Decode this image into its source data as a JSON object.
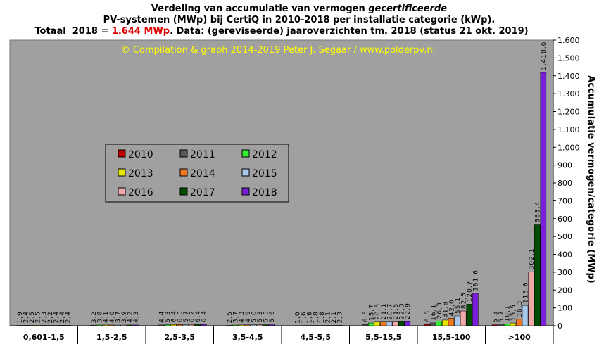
{
  "chart_data": {
    "type": "bar",
    "title": {
      "line1": "Verdeling van accumulatie van vermogen",
      "line1_italic": "gecertificeerde",
      "line2": "PV-systemen (MWp) bij CertiQ in 2010-2018 per installatie categorie (kWp).",
      "line3a": "Totaal  2018 = ",
      "line3_highlight": "1.644 MWp",
      "line3b": ". Data: (gereviseerde) jaaroverzichten tm. 2018 (status 21 okt. 2019)"
    },
    "watermark": "© Compilation  & graph 2014-2019 Peter J. Segaar / www.polderpv.nl",
    "y_label": "Accumulatie vermogen/categorie (MWp)",
    "categories": [
      "0,601-1,5",
      "1,5-2,5",
      "2,5-3,5",
      "3,5-4,5",
      "4,5-5,5",
      "5,5-15,5",
      "15,5-100",
      ">100"
    ],
    "ylim": [
      0,
      1600
    ],
    "yticks": [
      0,
      100,
      200,
      300,
      400,
      500,
      600,
      700,
      800,
      900,
      {
        "value": 1000,
        "label": "1.000"
      },
      {
        "value": 1100,
        "label": "1.100"
      },
      {
        "value": 1200,
        "label": "1.200"
      },
      {
        "value": 1300,
        "label": "1.300"
      },
      {
        "value": 1400,
        "label": "1.400"
      },
      {
        "value": 1500,
        "label": "1.500"
      },
      {
        "value": 1600,
        "label": "1.600"
      }
    ],
    "series": [
      {
        "name": "2010",
        "color": "#c00000",
        "values": [
          1.9,
          null,
          null,
          null,
          null,
          null,
          6.8,
          5.3
        ],
        "value_labels": [
          "1,9",
          null,
          null,
          null,
          null,
          null,
          "6,8",
          "5,3"
        ]
      },
      {
        "name": "2011",
        "color": "#595959",
        "values": [
          2.4,
          3.2,
          4.4,
          2.5,
          1.0,
          6.5,
          16.1,
          5.7
        ],
        "value_labels": [
          "2,4",
          "3,2",
          "4,4",
          "2,5",
          "1,0",
          "6,5",
          "16,1",
          "5,7"
        ]
      },
      {
        "name": "2012",
        "color": "#33ee33",
        "values": [
          2.5,
          3.8,
          5.3,
          3.7,
          1.6,
          15.7,
          26.3,
          10.1
        ],
        "value_labels": [
          "2,5",
          "3,8",
          "5,3",
          "3,7",
          "1,6",
          "15,7",
          "26,3",
          "10,1"
        ]
      },
      {
        "name": "2013",
        "color": "#e6e600",
        "values": [
          2.5,
          4.1,
          6.4,
          4.3,
          1.8,
          20.5,
          31.8,
          15.5
        ],
        "value_labels": [
          "2,5",
          "4,1",
          "6,4",
          "4,3",
          "1,8",
          "20,5",
          "31,8",
          "15,5"
        ]
      },
      {
        "name": "2014",
        "color": "#f07820",
        "values": [
          2.3,
          4.0,
          6.5,
          4.9,
          1.8,
          21.1,
          42.0,
          36.3
        ],
        "value_labels": [
          "2,3",
          "4,0",
          "6,5",
          "4,9",
          "1,8",
          "21,1",
          "42,0",
          "36,3"
        ]
      },
      {
        "name": "2015",
        "color": "#a8c8ec",
        "values": [
          2.2,
          3.7,
          5.7,
          5.0,
          1.8,
          20.7,
          55.1,
          113.6
        ],
        "value_labels": [
          "2,2",
          "3,7",
          "5,7",
          "5,0",
          "1,8",
          "20,7",
          "55,1",
          "113,6"
        ]
      },
      {
        "name": "2016",
        "color": "#f0a8a8",
        "values": [
          2.4,
          3.9,
          6.2,
          5.3,
          2.1,
          21.5,
          82.5,
          302.1
        ],
        "value_labels": [
          "2,4",
          "3,9",
          "6,2",
          "5,3",
          "2,1",
          "21,5",
          "82,5",
          "302,1"
        ]
      },
      {
        "name": "2017",
        "color": "#004d00",
        "values": [
          2.4,
          4.2,
          6.4,
          5.5,
          2.1,
          22.3,
          120.7,
          565.4
        ],
        "value_labels": [
          "2,4",
          "4,2",
          "6,4",
          "5,5",
          "2,1",
          "22,3",
          "120,7",
          "565,4"
        ]
      },
      {
        "name": "2018",
        "color": "#7a1fd8",
        "values": [
          2.4,
          4.3,
          6.4,
          5.6,
          2.3,
          22.9,
          181.6,
          1418.6
        ],
        "value_labels": [
          "2,4",
          "4,3",
          "6,4",
          "5,6",
          "2,3",
          "22,9",
          "181,6",
          "1.418,6"
        ]
      }
    ],
    "legend": "inside-left"
  }
}
